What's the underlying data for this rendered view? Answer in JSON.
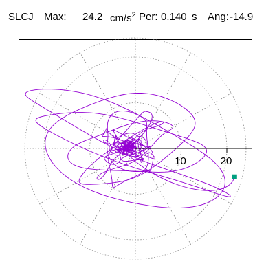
{
  "header": {
    "station": "SLCJ",
    "max_label": "Max:",
    "max_value": "24.2",
    "max_unit": "cm/s",
    "max_unit_power": "2",
    "per_label": "Per:",
    "per_value": "0.140",
    "per_unit": "s",
    "ang_label": "Ang:",
    "ang_value": "-14.9"
  },
  "chart_data": {
    "type": "scatter",
    "kind": "polar particle-motion orbit",
    "title": "",
    "radial_axis": {
      "ticks": [
        10,
        20
      ],
      "tick_labels": [
        "10",
        "20"
      ],
      "range": [
        0,
        24.2
      ],
      "unit": "cm/s2"
    },
    "angle_deg": -14.9,
    "grid": true,
    "grid_style": "dotted circles and radial spokes every 30 degrees",
    "colors": {
      "trace": "#9400d3",
      "end_marker": "#00a080",
      "axis": "#000000",
      "grid": "#888888"
    },
    "end_point": {
      "x": 21.7,
      "y": -6.2
    }
  }
}
